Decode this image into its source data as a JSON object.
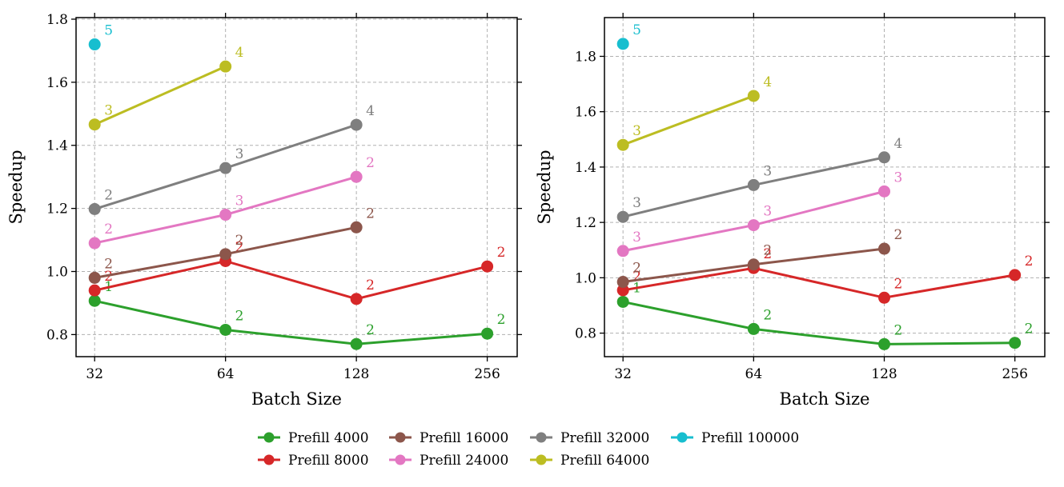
{
  "chart_data": [
    {
      "type": "line",
      "panel": "left",
      "xlabel": "Batch Size",
      "ylabel": "Speedup",
      "x_scale": "log2",
      "x_ticks": [
        32,
        64,
        128,
        256
      ],
      "x_tick_labels": [
        "32",
        "64",
        "128",
        "256"
      ],
      "xlim": [
        29,
        300
      ],
      "y_ticks": [
        0.8,
        1.0,
        1.2,
        1.4,
        1.6,
        1.8
      ],
      "y_tick_labels": [
        "0.8",
        "1.0",
        "1.2",
        "1.4",
        "1.6",
        "1.8"
      ],
      "ylim": [
        0.73,
        1.805
      ],
      "grid": true,
      "series": [
        {
          "name": "Prefill 4000",
          "color": "#2ca02c",
          "x": [
            32,
            64,
            128,
            256
          ],
          "y": [
            0.907,
            0.815,
            0.77,
            0.803
          ],
          "labels": [
            "1",
            "2",
            "2",
            "2"
          ]
        },
        {
          "name": "Prefill 8000",
          "color": "#d62728",
          "x": [
            32,
            64,
            128,
            256
          ],
          "y": [
            0.94,
            1.033,
            0.913,
            1.016
          ],
          "labels": [
            "2",
            "2",
            "2",
            "2"
          ]
        },
        {
          "name": "Prefill 16000",
          "color": "#8c564b",
          "x": [
            32,
            64,
            128
          ],
          "y": [
            0.98,
            1.055,
            1.14
          ],
          "labels": [
            "2",
            "2",
            "2"
          ]
        },
        {
          "name": "Prefill 24000",
          "color": "#e377c2",
          "x": [
            32,
            64,
            128
          ],
          "y": [
            1.09,
            1.18,
            1.3
          ],
          "labels": [
            "2",
            "3",
            "2"
          ]
        },
        {
          "name": "Prefill 32000",
          "color": "#7f7f7f",
          "x": [
            32,
            64,
            128
          ],
          "y": [
            1.198,
            1.328,
            1.465
          ],
          "labels": [
            "2",
            "3",
            "4"
          ]
        },
        {
          "name": "Prefill 64000",
          "color": "#bcbd22",
          "x": [
            32,
            64
          ],
          "y": [
            1.466,
            1.65
          ],
          "labels": [
            "3",
            "4"
          ]
        },
        {
          "name": "Prefill 100000",
          "color": "#17becf",
          "x": [
            32
          ],
          "y": [
            1.72
          ],
          "labels": [
            "5"
          ]
        }
      ]
    },
    {
      "type": "line",
      "panel": "right",
      "xlabel": "Batch Size",
      "ylabel": "Speedup",
      "x_scale": "log2",
      "x_ticks": [
        32,
        64,
        128,
        256
      ],
      "x_tick_labels": [
        "32",
        "64",
        "128",
        "256"
      ],
      "xlim": [
        29,
        300
      ],
      "y_ticks": [
        0.8,
        1.0,
        1.2,
        1.4,
        1.6,
        1.8
      ],
      "y_tick_labels": [
        "0.8",
        "1.0",
        "1.2",
        "1.4",
        "1.6",
        "1.8"
      ],
      "ylim": [
        0.715,
        1.94
      ],
      "grid": true,
      "series": [
        {
          "name": "Prefill 4000",
          "color": "#2ca02c",
          "x": [
            32,
            64,
            128,
            256
          ],
          "y": [
            0.913,
            0.815,
            0.76,
            0.765
          ],
          "labels": [
            "1",
            "2",
            "2",
            "2"
          ]
        },
        {
          "name": "Prefill 8000",
          "color": "#d62728",
          "x": [
            32,
            64,
            128,
            256
          ],
          "y": [
            0.955,
            1.035,
            0.928,
            1.01
          ],
          "labels": [
            "2",
            "2",
            "2",
            "2"
          ]
        },
        {
          "name": "Prefill 16000",
          "color": "#8c564b",
          "x": [
            32,
            64,
            128
          ],
          "y": [
            0.985,
            1.048,
            1.105
          ],
          "labels": [
            "2",
            "2",
            "2"
          ]
        },
        {
          "name": "Prefill 24000",
          "color": "#e377c2",
          "x": [
            32,
            64,
            128
          ],
          "y": [
            1.097,
            1.19,
            1.312
          ],
          "labels": [
            "3",
            "3",
            "3"
          ]
        },
        {
          "name": "Prefill 32000",
          "color": "#7f7f7f",
          "x": [
            32,
            64,
            128
          ],
          "y": [
            1.22,
            1.335,
            1.435
          ],
          "labels": [
            "3",
            "3",
            "4"
          ]
        },
        {
          "name": "Prefill 64000",
          "color": "#bcbd22",
          "x": [
            32,
            64
          ],
          "y": [
            1.48,
            1.657
          ],
          "labels": [
            "3",
            "4"
          ]
        },
        {
          "name": "Prefill 100000",
          "color": "#17becf",
          "x": [
            32
          ],
          "y": [
            1.845
          ],
          "labels": [
            "5"
          ]
        }
      ]
    }
  ],
  "legend": {
    "placement": "bottom-center",
    "entries": [
      {
        "name": "Prefill 4000",
        "color": "#2ca02c"
      },
      {
        "name": "Prefill 8000",
        "color": "#d62728"
      },
      {
        "name": "Prefill 16000",
        "color": "#8c564b"
      },
      {
        "name": "Prefill 24000",
        "color": "#e377c2"
      },
      {
        "name": "Prefill 32000",
        "color": "#7f7f7f"
      },
      {
        "name": "Prefill 64000",
        "color": "#bcbd22"
      },
      {
        "name": "Prefill 100000",
        "color": "#17becf"
      }
    ]
  }
}
